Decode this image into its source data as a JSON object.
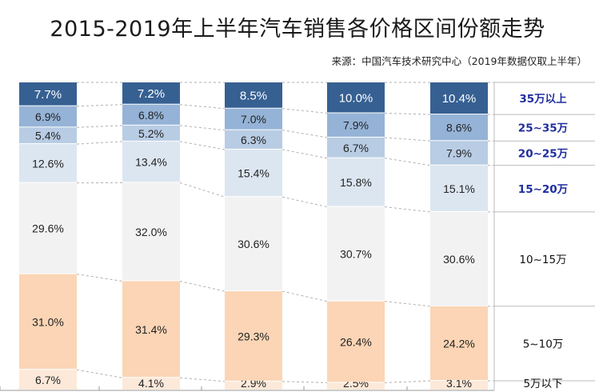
{
  "title": "2015-2019年上半年汽车销售各价格区间份额走势",
  "source": "来源：中国汽车技术研究中心（2019年数据仅取上半年）",
  "colors": {
    "seg0": "#fde9d9",
    "seg1": "#fbd5b5",
    "seg2": "#f2f2f2",
    "seg3": "#dce6f1",
    "seg4": "#b8cce4",
    "seg5": "#95b3d7",
    "seg6": "#366092",
    "legend_strong": "#1f2d9e",
    "legend_normal": "#111111"
  },
  "chart_data": {
    "type": "bar",
    "stacked": true,
    "categories": [
      "",
      "",
      "",
      "",
      ""
    ],
    "series": [
      {
        "name": "5万以下",
        "values": [
          6.7,
          4.1,
          2.9,
          2.5,
          3.1
        ],
        "labels": [
          "6.7%",
          "4.1%",
          "2.9%",
          "2.5%",
          "3.1%"
        ]
      },
      {
        "name": "5~10万",
        "values": [
          31.0,
          31.4,
          29.3,
          26.4,
          24.2
        ],
        "labels": [
          "31.0%",
          "31.4%",
          "29.3%",
          "26.4%",
          "24.2%"
        ]
      },
      {
        "name": "10~15万",
        "values": [
          29.6,
          32.0,
          30.6,
          30.7,
          30.6
        ],
        "labels": [
          "29.6%",
          "32.0%",
          "30.6%",
          "30.7%",
          "30.6%"
        ]
      },
      {
        "name": "15~20万",
        "values": [
          12.6,
          13.4,
          15.4,
          15.8,
          15.1
        ],
        "labels": [
          "12.6%",
          "13.4%",
          "15.4%",
          "15.8%",
          "15.1%"
        ]
      },
      {
        "name": "20~25万",
        "values": [
          5.4,
          5.2,
          6.3,
          6.7,
          7.9
        ],
        "labels": [
          "5.4%",
          "5.2%",
          "6.3%",
          "6.7%",
          "7.9%"
        ]
      },
      {
        "name": "25~35万",
        "values": [
          6.9,
          6.8,
          7.0,
          7.9,
          8.6
        ],
        "labels": [
          "6.9%",
          "6.8%",
          "7.0%",
          "7.9%",
          "8.6%"
        ]
      },
      {
        "name": "35万以上",
        "values": [
          7.7,
          7.2,
          8.5,
          10.0,
          10.4
        ],
        "labels": [
          "7.7%",
          "7.2%",
          "8.5%",
          "10.0%",
          "10.4%"
        ]
      }
    ],
    "legend_bold": [
      false,
      false,
      false,
      true,
      true,
      true,
      true
    ],
    "legend_placement": "right",
    "ylim": [
      0,
      100
    ],
    "grid": false
  }
}
